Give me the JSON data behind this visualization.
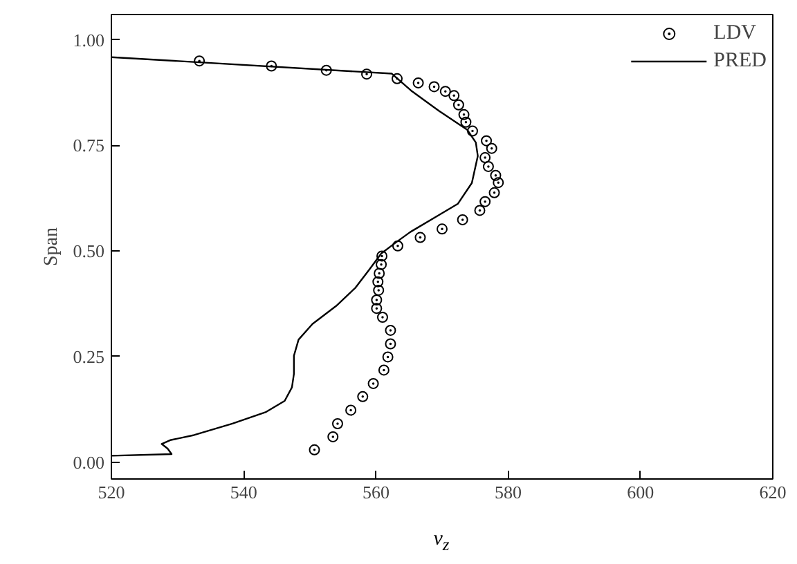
{
  "chart_data": {
    "type": "scatter",
    "xlabel": "v$_{z}$",
    "ylabel": "Span",
    "xlim": [
      520,
      620
    ],
    "xticks": [
      520,
      540,
      560,
      580,
      600,
      620
    ],
    "ylim": [
      -0.04,
      1.06
    ],
    "yticks": [
      {
        "value": 0,
        "label": "0.00"
      },
      {
        "value": 0.25,
        "label": "0.25"
      },
      {
        "value": 0.5,
        "label": "0.50"
      },
      {
        "value": 0.75,
        "label": "0.75"
      },
      {
        "value": 1,
        "label": "1.00"
      }
    ],
    "grid": false,
    "legend": "top right",
    "series": [
      {
        "name": "LDV",
        "marker": "circle",
        "color": "#000000",
        "x": [
          533.3,
          544.2,
          552.5,
          558.6,
          563.2,
          566.4,
          568.8,
          570.5,
          571.8,
          572.5,
          573.3,
          573.6,
          574.6,
          576.7,
          577.5,
          576.5,
          577.0,
          578.1,
          578.5,
          577.9,
          576.5,
          575.7,
          573.1,
          570.0,
          566.7,
          563.3,
          560.9,
          560.8,
          560.5,
          560.3,
          560.4,
          560.1,
          560.1,
          561.0,
          562.2,
          562.2,
          561.8,
          561.2,
          559.6,
          558.0,
          556.2,
          554.2,
          553.5,
          550.7
        ],
        "values": [
          0.95,
          0.938,
          0.928,
          0.919,
          0.908,
          0.898,
          0.889,
          0.878,
          0.868,
          0.846,
          0.823,
          0.805,
          0.784,
          0.761,
          0.743,
          0.721,
          0.7,
          0.679,
          0.662,
          0.638,
          0.617,
          0.596,
          0.574,
          0.552,
          0.532,
          0.512,
          0.488,
          0.468,
          0.447,
          0.427,
          0.407,
          0.384,
          0.364,
          0.343,
          0.312,
          0.28,
          0.249,
          0.218,
          0.186,
          0.155,
          0.123,
          0.091,
          0.06,
          0.029
        ]
      },
      {
        "name": "PRED",
        "type": "line",
        "marker": "none",
        "line_style": "solid",
        "color": "#000000",
        "x": [
          520,
          562.4,
          565.3,
          569.5,
          573.8,
          575.1,
          575.4,
          574.5,
          572.4,
          569.5,
          565.2,
          563.0,
          560.8,
          559.0,
          556.9,
          554.0,
          550.4,
          548.3,
          547.6,
          547.6,
          547.3,
          546.2,
          543.3,
          538.3,
          532.5,
          528.9,
          527.6,
          528.5,
          529.1,
          520
        ],
        "values": [
          0.959,
          0.92,
          0.88,
          0.832,
          0.787,
          0.757,
          0.725,
          0.661,
          0.612,
          0.585,
          0.545,
          0.52,
          0.494,
          0.456,
          0.413,
          0.37,
          0.327,
          0.29,
          0.252,
          0.209,
          0.177,
          0.145,
          0.118,
          0.091,
          0.064,
          0.052,
          0.043,
          0.032,
          0.019,
          0.015
        ]
      }
    ]
  }
}
